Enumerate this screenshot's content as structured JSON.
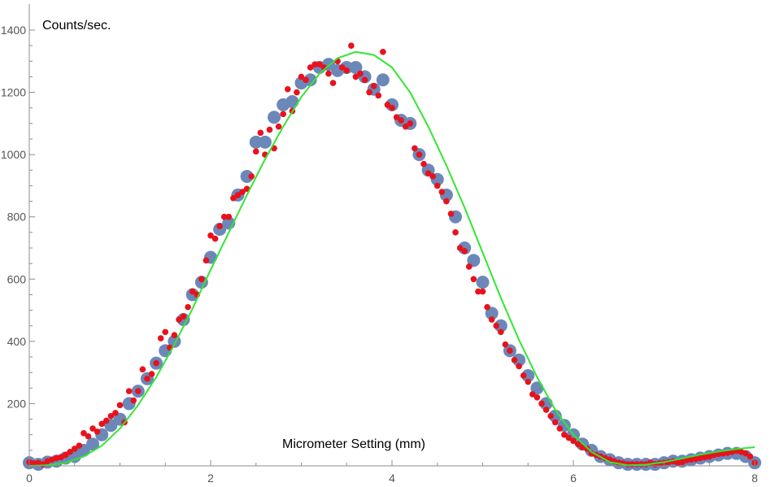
{
  "chart_data": {
    "type": "scatter",
    "title": "",
    "xlabel": "Micrometer Setting (mm)",
    "ylabel": "Counts/sec.",
    "xlim": [
      0,
      8
    ],
    "ylim": [
      0,
      1400
    ],
    "x_ticks": [
      0,
      2,
      4,
      6,
      8
    ],
    "y_ticks": [
      200,
      400,
      600,
      800,
      1000,
      1200,
      1400
    ],
    "grid": false,
    "legend": "none",
    "colors": {
      "large_points": "#6b88b9",
      "small_points": "#e8121c",
      "curve": "#32e632",
      "axis": "#8c8c8c"
    },
    "series": [
      {
        "kind": "points-large",
        "x": [
          0,
          0.1,
          0.2,
          0.3,
          0.4,
          0.5,
          0.6,
          0.7,
          0.8,
          0.9,
          1.0,
          1.1,
          1.2,
          1.3,
          1.4,
          1.5,
          1.6,
          1.7,
          1.8,
          1.9,
          2.0,
          2.1,
          2.2,
          2.3,
          2.4,
          2.5,
          2.6,
          2.7,
          2.8,
          2.9,
          3.0,
          3.1,
          3.2,
          3.3,
          3.4,
          3.5,
          3.6,
          3.7,
          3.8,
          3.9,
          4.0,
          4.1,
          4.2,
          4.3,
          4.4,
          4.5,
          4.6,
          4.7,
          4.8,
          4.9,
          5.0,
          5.1,
          5.2,
          5.3,
          5.4,
          5.5,
          5.6,
          5.7,
          5.8,
          5.9,
          6.0,
          6.1,
          6.2,
          6.3,
          6.4,
          6.5,
          6.6,
          6.7,
          6.8,
          6.9,
          7.0,
          7.1,
          7.2,
          7.3,
          7.4,
          7.5,
          7.6,
          7.7,
          7.8,
          7.9,
          8.0
        ],
        "y": [
          10,
          5,
          12,
          15,
          25,
          30,
          50,
          70,
          100,
          130,
          150,
          200,
          240,
          280,
          330,
          370,
          400,
          470,
          550,
          590,
          670,
          760,
          780,
          870,
          930,
          1040,
          1040,
          1120,
          1160,
          1170,
          1230,
          1240,
          1280,
          1290,
          1270,
          1280,
          1280,
          1250,
          1210,
          1240,
          1160,
          1110,
          1100,
          1000,
          950,
          920,
          870,
          800,
          700,
          660,
          590,
          490,
          450,
          370,
          340,
          290,
          250,
          200,
          160,
          130,
          100,
          70,
          50,
          30,
          20,
          10,
          5,
          5,
          5,
          5,
          10,
          15,
          15,
          20,
          25,
          30,
          35,
          40,
          40,
          30,
          10
        ]
      },
      {
        "kind": "points-small",
        "x": [
          0,
          0.05,
          0.1,
          0.15,
          0.2,
          0.25,
          0.3,
          0.35,
          0.4,
          0.45,
          0.5,
          0.55,
          0.6,
          0.65,
          0.7,
          0.75,
          0.8,
          0.85,
          0.9,
          0.95,
          1.0,
          1.05,
          1.1,
          1.15,
          1.2,
          1.25,
          1.3,
          1.35,
          1.4,
          1.45,
          1.5,
          1.55,
          1.6,
          1.65,
          1.7,
          1.75,
          1.8,
          1.85,
          1.9,
          1.95,
          2.0,
          2.05,
          2.1,
          2.15,
          2.2,
          2.25,
          2.3,
          2.35,
          2.4,
          2.45,
          2.5,
          2.55,
          2.6,
          2.65,
          2.7,
          2.75,
          2.8,
          2.85,
          2.9,
          2.95,
          3.0,
          3.05,
          3.1,
          3.15,
          3.2,
          3.25,
          3.3,
          3.35,
          3.4,
          3.45,
          3.5,
          3.55,
          3.6,
          3.65,
          3.7,
          3.75,
          3.8,
          3.85,
          3.9,
          3.95,
          4.0,
          4.05,
          4.1,
          4.15,
          4.2,
          4.25,
          4.3,
          4.35,
          4.4,
          4.45,
          4.5,
          4.55,
          4.6,
          4.65,
          4.7,
          4.75,
          4.8,
          4.85,
          4.9,
          4.95,
          5.0,
          5.05,
          5.1,
          5.15,
          5.2,
          5.25,
          5.3,
          5.35,
          5.4,
          5.45,
          5.5,
          5.55,
          5.6,
          5.65,
          5.7,
          5.75,
          5.8,
          5.85,
          5.9,
          5.95,
          6.0,
          6.05,
          6.1,
          6.15,
          6.2,
          6.25,
          6.3,
          6.35,
          6.4,
          6.45,
          6.5,
          6.55,
          6.6,
          6.65,
          6.7,
          6.75,
          6.8,
          6.85,
          6.9,
          6.95,
          7.0,
          7.05,
          7.1,
          7.15,
          7.2,
          7.25,
          7.3,
          7.35,
          7.4,
          7.45,
          7.5,
          7.55,
          7.6,
          7.65,
          7.7,
          7.75,
          7.8,
          7.85,
          7.9,
          7.95,
          8.0
        ],
        "y": [
          12,
          8,
          10,
          5,
          15,
          20,
          25,
          28,
          35,
          45,
          55,
          65,
          105,
          95,
          120,
          110,
          135,
          145,
          160,
          170,
          195,
          140,
          240,
          210,
          240,
          310,
          280,
          295,
          330,
          410,
          430,
          380,
          420,
          470,
          480,
          510,
          560,
          550,
          600,
          660,
          740,
          730,
          770,
          800,
          800,
          860,
          870,
          880,
          890,
          930,
          1010,
          1070,
          1000,
          1080,
          1020,
          1090,
          1130,
          1210,
          1140,
          1200,
          1250,
          1240,
          1280,
          1290,
          1290,
          1280,
          1260,
          1230,
          1300,
          1280,
          1270,
          1350,
          1250,
          1260,
          1240,
          1200,
          1220,
          1190,
          1330,
          1160,
          1150,
          1120,
          1110,
          1090,
          1100,
          1020,
          1000,
          970,
          940,
          930,
          900,
          880,
          850,
          810,
          750,
          700,
          690,
          640,
          600,
          560,
          560,
          510,
          470,
          450,
          430,
          390,
          370,
          340,
          320,
          290,
          270,
          230,
          220,
          200,
          180,
          160,
          140,
          120,
          100,
          90,
          80,
          70,
          60,
          55,
          40,
          35,
          30,
          25,
          20,
          15,
          10,
          8,
          5,
          5,
          5,
          5,
          5,
          10,
          5,
          8,
          10,
          12,
          15,
          10,
          12,
          18,
          20,
          22,
          25,
          28,
          30,
          35,
          38,
          40,
          42,
          45,
          48,
          45,
          40,
          30,
          10
        ]
      },
      {
        "kind": "curve",
        "x": [
          0,
          0.2,
          0.4,
          0.6,
          0.8,
          1.0,
          1.2,
          1.4,
          1.6,
          1.8,
          2.0,
          2.2,
          2.4,
          2.6,
          2.8,
          3.0,
          3.2,
          3.4,
          3.6,
          3.8,
          4.0,
          4.2,
          4.4,
          4.6,
          4.8,
          5.0,
          5.2,
          5.4,
          5.6,
          5.8,
          6.0,
          6.2,
          6.4,
          6.6,
          6.8,
          7.0,
          7.2,
          7.4,
          7.6,
          7.8,
          8.0
        ],
        "y": [
          0,
          2,
          10,
          30,
          65,
          120,
          195,
          285,
          390,
          505,
          630,
          750,
          870,
          985,
          1090,
          1185,
          1260,
          1310,
          1330,
          1320,
          1280,
          1200,
          1090,
          965,
          830,
          685,
          540,
          405,
          285,
          180,
          100,
          45,
          12,
          2,
          4,
          12,
          24,
          36,
          46,
          54,
          60
        ]
      }
    ]
  }
}
